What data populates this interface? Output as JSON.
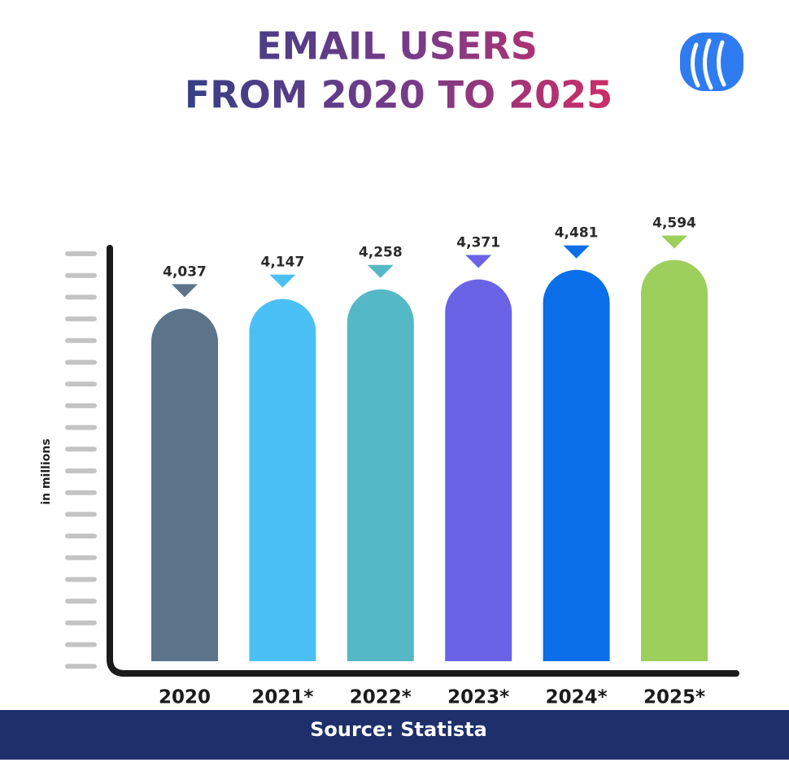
{
  "chart_data": {
    "type": "bar",
    "title": [
      "EMAIL USERS",
      "FROM 2020 TO 2025"
    ],
    "y_label": "in millions",
    "categories": [
      "2020",
      "2021*",
      "2022*",
      "2023*",
      "2024*",
      "2025*"
    ],
    "values": [
      4037,
      4147,
      4258,
      4371,
      4481,
      4594
    ],
    "value_labels": [
      "4,037",
      "4,147",
      "4,258",
      "4,371",
      "4,481",
      "4,594"
    ],
    "colors": [
      "#5b7489",
      "#4bc0f5",
      "#55b8c6",
      "#6a63e6",
      "#0a6fe8",
      "#9ccf5b"
    ],
    "ylim": [
      0,
      5000
    ],
    "source": "Source: Statista"
  }
}
